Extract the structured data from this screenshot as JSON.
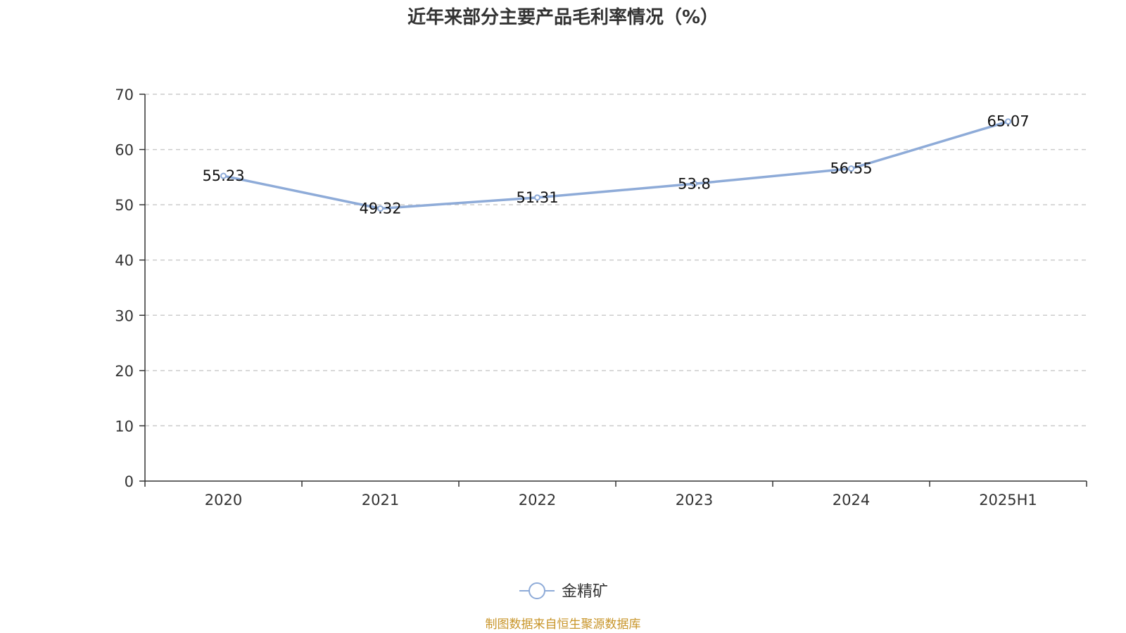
{
  "chart_data": {
    "type": "line",
    "title": "近年来部分主要产品毛利率情况（%）",
    "categories": [
      "2020",
      "2021",
      "2022",
      "2023",
      "2024",
      "2025H1"
    ],
    "series": [
      {
        "name": "金精矿",
        "values": [
          55.23,
          49.32,
          51.31,
          53.8,
          56.55,
          65.07
        ],
        "labels": [
          "55.23",
          "49.32",
          "51.31",
          "53.8",
          "56.55",
          "65.07"
        ]
      }
    ],
    "ylim": [
      0,
      70
    ],
    "yticks": [
      "0",
      "10",
      "20",
      "30",
      "40",
      "50",
      "60",
      "70"
    ],
    "grid": true,
    "legend_position": "bottom-center",
    "source": "制图数据来自恒生聚源数据库",
    "colors": {
      "series": "#8eabd8",
      "axis": "#333333",
      "grid": "#cccccc",
      "source": "#c8952a"
    }
  }
}
